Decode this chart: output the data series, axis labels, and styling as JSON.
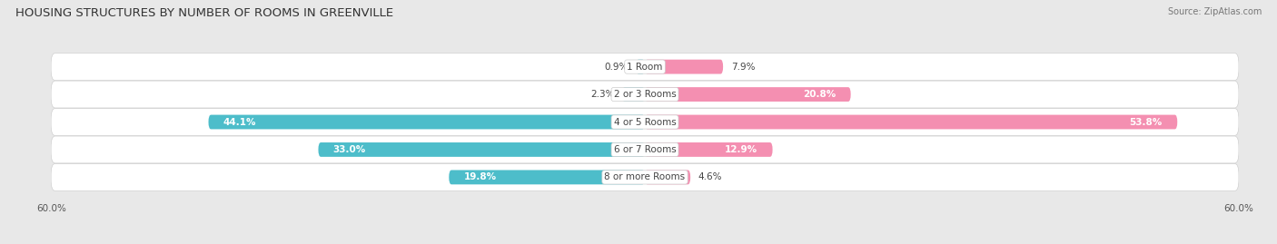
{
  "title": "HOUSING STRUCTURES BY NUMBER OF ROOMS IN GREENVILLE",
  "source": "Source: ZipAtlas.com",
  "categories": [
    "1 Room",
    "2 or 3 Rooms",
    "4 or 5 Rooms",
    "6 or 7 Rooms",
    "8 or more Rooms"
  ],
  "owner_values": [
    0.9,
    2.3,
    44.1,
    33.0,
    19.8
  ],
  "renter_values": [
    7.9,
    20.8,
    53.8,
    12.9,
    4.6
  ],
  "owner_color": "#4dbdca",
  "renter_color": "#f48fb1",
  "xlim": 60.0,
  "bar_height": 0.52,
  "bg_color": "#e8e8e8",
  "title_fontsize": 9.5,
  "label_fontsize": 7.5,
  "tick_fontsize": 7.5,
  "category_fontsize": 7.5,
  "legend_fontsize": 8,
  "inside_label_threshold": 10
}
